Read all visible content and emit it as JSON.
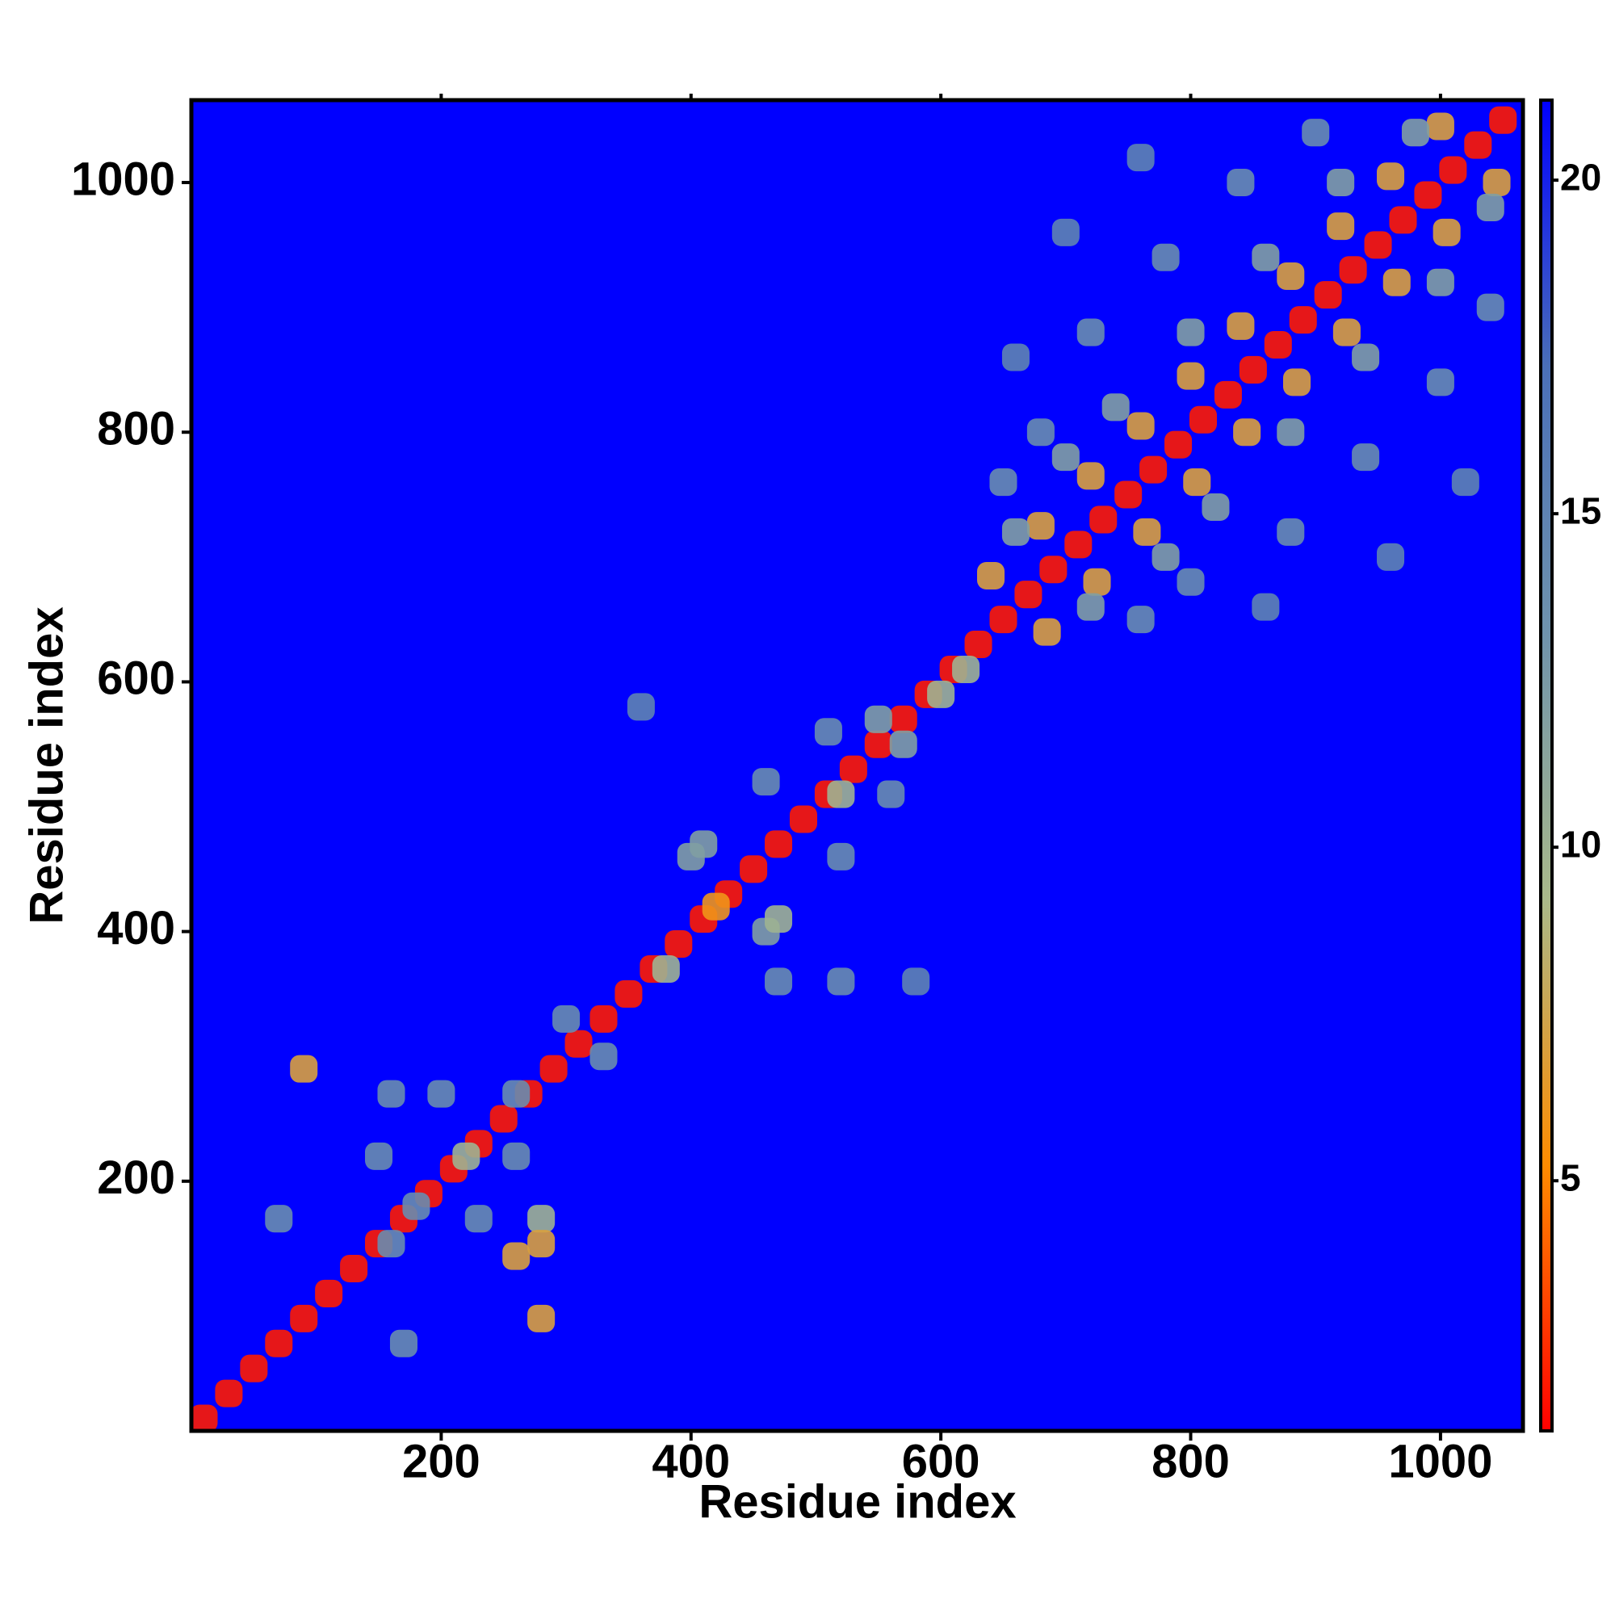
{
  "chart_data": {
    "type": "heatmap",
    "xlabel": "Residue index",
    "ylabel": "Residue index",
    "xlim": [
      0,
      1066
    ],
    "ylim": [
      0,
      1066
    ],
    "xticks": [
      200,
      400,
      600,
      800,
      1000
    ],
    "yticks": [
      200,
      400,
      600,
      800,
      1000
    ],
    "clim": [
      1.25,
      21.2
    ],
    "cbar_ticks": [
      5,
      10,
      15,
      20
    ],
    "colormap": [
      "#ff0000",
      "#ff8c00",
      "#a9b98a",
      "#6f93ad",
      "#4a6fb8",
      "#0000ff"
    ],
    "x": [
      10,
      30,
      50,
      70,
      90,
      110,
      130,
      150,
      170,
      190,
      210,
      230,
      250,
      270,
      290,
      310,
      330,
      350,
      370,
      390,
      410,
      430,
      450,
      470,
      490,
      510,
      530,
      550,
      570,
      590,
      610,
      630,
      650,
      670,
      690,
      710,
      730,
      750,
      770,
      790,
      810,
      830,
      850,
      870,
      890,
      910,
      930,
      950,
      970,
      990,
      1010,
      1030,
      1050,
      640,
      685,
      680,
      725,
      720,
      765,
      760,
      805,
      800,
      845,
      840,
      885,
      880,
      925,
      920,
      965,
      960,
      1005,
      1000,
      1045,
      160,
      200,
      260,
      150,
      220,
      260,
      180,
      230,
      280,
      160,
      260,
      280,
      70,
      170,
      280,
      90,
      300,
      330,
      400,
      460,
      420,
      470,
      410,
      520,
      460,
      520,
      510,
      560,
      570,
      550,
      380,
      470,
      520,
      580,
      360,
      620,
      600,
      660,
      720,
      700,
      780,
      740,
      820,
      800,
      880,
      860,
      940,
      920,
      1000,
      980,
      1040,
      680,
      800,
      720,
      880,
      780,
      940,
      840,
      1000,
      900,
      1040,
      660,
      860,
      700,
      960,
      760,
      1020,
      650,
      760
    ],
    "y": [
      10,
      30,
      50,
      70,
      90,
      110,
      130,
      150,
      170,
      190,
      210,
      230,
      250,
      270,
      290,
      310,
      330,
      350,
      370,
      390,
      410,
      430,
      450,
      470,
      490,
      510,
      530,
      550,
      570,
      590,
      610,
      630,
      650,
      670,
      690,
      710,
      730,
      750,
      770,
      790,
      810,
      830,
      850,
      870,
      890,
      910,
      930,
      950,
      970,
      990,
      1010,
      1030,
      1050,
      685,
      640,
      725,
      680,
      765,
      720,
      805,
      760,
      845,
      800,
      885,
      840,
      925,
      880,
      965,
      920,
      1005,
      960,
      1045,
      1000,
      270,
      270,
      270,
      220,
      220,
      220,
      180,
      170,
      170,
      150,
      140,
      150,
      170,
      70,
      90,
      290,
      330,
      300,
      460,
      400,
      420,
      410,
      470,
      460,
      520,
      510,
      560,
      510,
      550,
      570,
      370,
      360,
      360,
      360,
      580,
      610,
      590,
      720,
      660,
      780,
      700,
      820,
      740,
      880,
      800,
      940,
      860,
      1000,
      920,
      1040,
      980,
      800,
      680,
      880,
      720,
      940,
      780,
      1000,
      840,
      1040,
      900,
      860,
      660,
      960,
      700,
      1020,
      760,
      760,
      650
    ],
    "values": [
      2,
      2,
      2,
      2,
      2,
      2,
      2,
      2,
      2,
      2,
      2,
      2,
      2,
      2,
      2,
      2,
      2,
      2,
      2,
      2,
      2,
      2,
      2,
      2,
      2,
      2,
      2,
      2,
      2,
      2,
      2,
      2,
      2,
      2,
      2,
      2,
      2,
      2,
      2,
      2,
      2,
      2,
      2,
      2,
      2,
      2,
      2,
      2,
      2,
      2,
      2,
      2,
      2,
      7,
      7,
      7,
      7,
      7,
      7,
      7,
      7,
      7,
      7,
      7,
      7,
      7,
      7,
      7,
      7,
      7,
      7,
      7,
      7,
      14,
      14,
      14,
      14,
      10,
      14,
      14,
      14,
      10,
      14,
      7,
      7,
      14,
      14,
      7,
      7,
      14,
      14,
      12,
      12,
      6,
      10,
      12,
      14,
      14,
      10,
      14,
      14,
      12,
      12,
      10,
      14,
      14,
      15,
      15,
      10,
      10,
      12,
      12,
      12,
      12,
      12,
      12,
      12,
      12,
      12,
      12,
      12,
      12,
      12,
      12,
      14,
      14,
      14,
      14,
      14,
      14,
      14,
      14,
      14,
      14,
      15,
      15,
      15,
      15,
      15,
      15,
      14,
      14
    ]
  }
}
